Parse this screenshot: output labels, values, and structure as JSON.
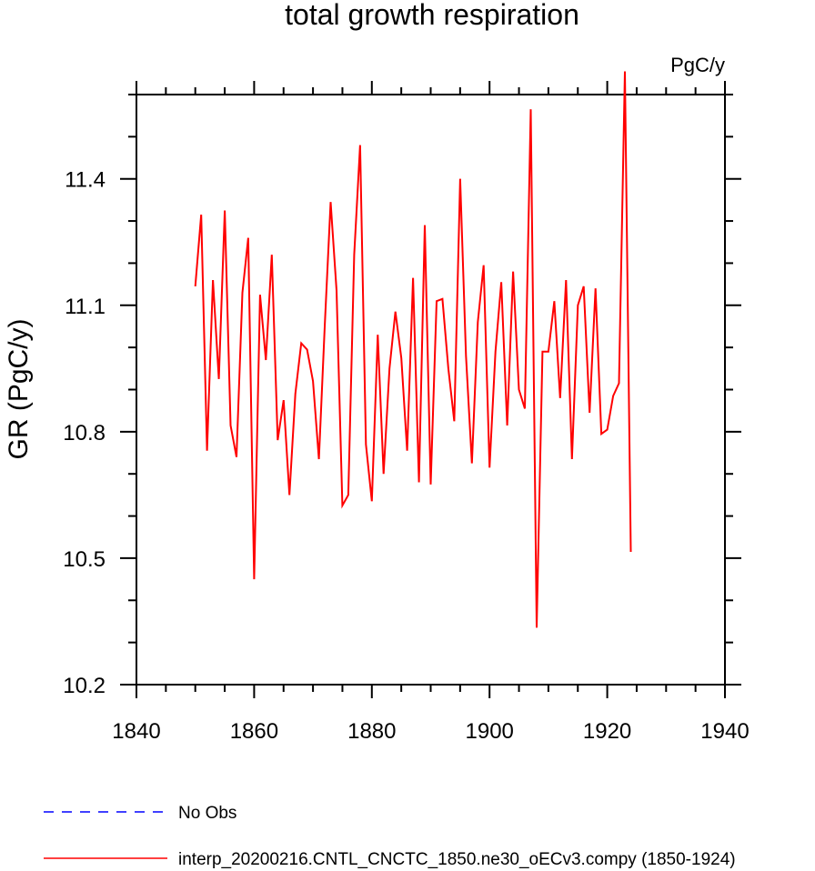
{
  "chart_data": {
    "type": "line",
    "title": "total growth respiration",
    "units": "PgC/y",
    "xlabel": "",
    "ylabel": "GR  (PgC/y)",
    "xlim": [
      1840,
      1940
    ],
    "ylim": [
      10.2,
      11.6
    ],
    "x_ticks": [
      "1840",
      "1860",
      "1880",
      "1900",
      "1920",
      "1940"
    ],
    "y_ticks": [
      "10.2",
      "10.5",
      "10.8",
      "11.1",
      "11.4"
    ],
    "grid": false,
    "legend_position": "bottom-left",
    "series": [
      {
        "name": "No Obs",
        "color": "#0000ff",
        "style": "dashed",
        "values": []
      },
      {
        "name": "interp_20200216.CNTL_CNCTC_1850.ne30_oECv3.compy (1850-1924)",
        "color": "#ff0000",
        "style": "solid",
        "x": [
          1850,
          1851,
          1852,
          1853,
          1854,
          1855,
          1856,
          1857,
          1858,
          1859,
          1860,
          1861,
          1862,
          1863,
          1864,
          1865,
          1866,
          1867,
          1868,
          1869,
          1870,
          1871,
          1872,
          1873,
          1874,
          1875,
          1876,
          1877,
          1878,
          1879,
          1880,
          1881,
          1882,
          1883,
          1884,
          1885,
          1886,
          1887,
          1888,
          1889,
          1890,
          1891,
          1892,
          1893,
          1894,
          1895,
          1896,
          1897,
          1898,
          1899,
          1900,
          1901,
          1902,
          1903,
          1904,
          1905,
          1906,
          1907,
          1908,
          1909,
          1910,
          1911,
          1912,
          1913,
          1914,
          1915,
          1916,
          1917,
          1918,
          1919,
          1920,
          1921,
          1922,
          1923,
          1924
        ],
        "values": [
          11.145,
          11.315,
          10.755,
          11.16,
          10.925,
          11.325,
          10.815,
          10.74,
          11.13,
          11.26,
          10.45,
          11.125,
          10.97,
          11.22,
          10.78,
          10.875,
          10.65,
          10.89,
          11.01,
          10.995,
          10.92,
          10.735,
          11.05,
          11.345,
          11.135,
          10.625,
          10.65,
          11.22,
          11.48,
          10.77,
          10.635,
          11.03,
          10.7,
          10.95,
          11.085,
          10.975,
          10.755,
          11.165,
          10.68,
          11.29,
          10.675,
          11.11,
          11.115,
          10.95,
          10.825,
          11.4,
          10.98,
          10.725,
          11.06,
          11.195,
          10.715,
          10.99,
          11.155,
          10.815,
          11.18,
          10.9,
          10.855,
          11.565,
          10.335,
          10.99,
          10.99,
          11.11,
          10.88,
          11.16,
          10.735,
          11.1,
          11.145,
          10.845,
          11.14,
          10.795,
          10.805,
          10.885,
          10.915,
          11.655,
          10.515
        ]
      }
    ]
  }
}
